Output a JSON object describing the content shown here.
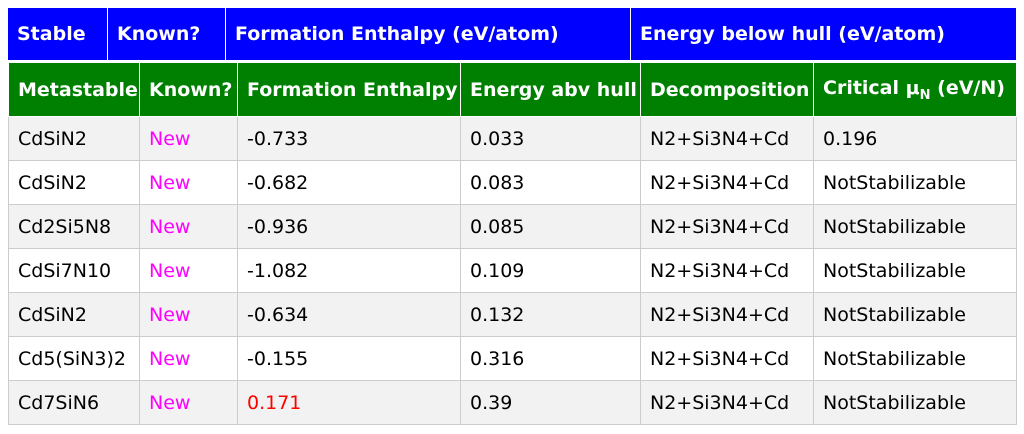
{
  "stable_header": {
    "columns": [
      "Stable",
      "Known?",
      "Formation Enthalpy (eV/atom)",
      "Energy below hull (eV/atom)"
    ]
  },
  "metastable": {
    "headers": {
      "metastable": "Metastable",
      "known": "Known?",
      "formation_enthalpy": "Formation Enthalpy",
      "energy_abv_hull": "Energy abv hull",
      "decomposition": "Decomposition",
      "critical_mu_prefix": "Critical μ",
      "critical_mu_sub": "N",
      "critical_mu_unit": "(eV/N)"
    },
    "rows": [
      {
        "formula": "CdSiN2",
        "known": "New",
        "enthalpy": "-0.733",
        "hull": "0.033",
        "decomp": "N2+Si3N4+Cd",
        "mu": "0.196",
        "enthalpy_positive": false
      },
      {
        "formula": "CdSiN2",
        "known": "New",
        "enthalpy": "-0.682",
        "hull": "0.083",
        "decomp": "N2+Si3N4+Cd",
        "mu": "NotStabilizable",
        "enthalpy_positive": false
      },
      {
        "formula": "Cd2Si5N8",
        "known": "New",
        "enthalpy": "-0.936",
        "hull": "0.085",
        "decomp": "N2+Si3N4+Cd",
        "mu": "NotStabilizable",
        "enthalpy_positive": false
      },
      {
        "formula": "CdSi7N10",
        "known": "New",
        "enthalpy": "-1.082",
        "hull": "0.109",
        "decomp": "N2+Si3N4+Cd",
        "mu": "NotStabilizable",
        "enthalpy_positive": false
      },
      {
        "formula": "CdSiN2",
        "known": "New",
        "enthalpy": "-0.634",
        "hull": "0.132",
        "decomp": "N2+Si3N4+Cd",
        "mu": "NotStabilizable",
        "enthalpy_positive": false
      },
      {
        "formula": "Cd5(SiN3)2",
        "known": "New",
        "enthalpy": "-0.155",
        "hull": "0.316",
        "decomp": "N2+Si3N4+Cd",
        "mu": "NotStabilizable",
        "enthalpy_positive": false
      },
      {
        "formula": "Cd7SiN6",
        "known": "New",
        "enthalpy": "0.171",
        "hull": "0.39",
        "decomp": "N2+Si3N4+Cd",
        "mu": "NotStabilizable",
        "enthalpy_positive": true
      }
    ]
  },
  "colors": {
    "stable_header_bg": "#0000ff",
    "metastable_header_bg": "#008000",
    "new_text": "#ff00ff",
    "positive_enthalpy_text": "#ff0000",
    "row_alt_bg": "#f2f2f2"
  }
}
